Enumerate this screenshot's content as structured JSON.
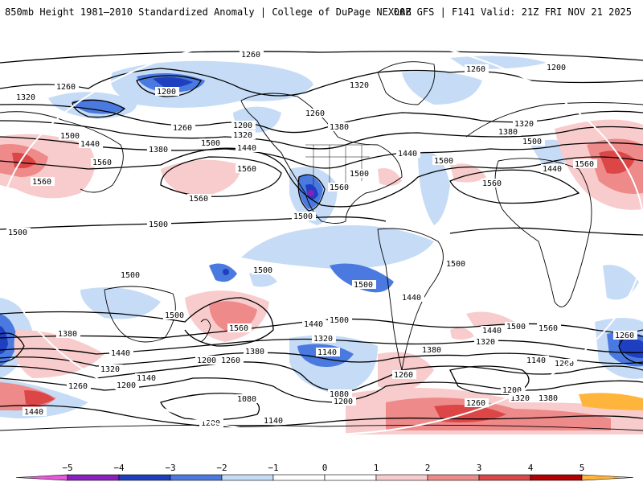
{
  "header": {
    "title_left": "850mb Height 1981–2010 Standardized Anomaly | College of DuPage NEXLAB",
    "title_right": "00Z GFS | F141 Valid: 21Z FRI NOV 21 2025"
  },
  "map": {
    "contour_labels": [
      "1260",
      "1200",
      "1320",
      "1500",
      "1440",
      "1380",
      "1560",
      "1080",
      "1140"
    ],
    "colors": {
      "neg5": "#e45ad8",
      "neg4": "#8a1fbf",
      "neg3": "#1e3fbf",
      "neg2": "#4a7ae0",
      "neg1": "#c6dcf6",
      "pos1": "#f8cccc",
      "pos2": "#ee8a8a",
      "pos3": "#dd4646",
      "pos4": "#b40000",
      "pos5": "#ffb43c",
      "land": "#ffffff",
      "contour": "#000000"
    }
  },
  "legend": {
    "ticks": [
      "−5",
      "−4",
      "−3",
      "−2",
      "−1",
      "0",
      "1",
      "2",
      "3",
      "4",
      "5"
    ],
    "bins": [
      "#e45ad8",
      "#8a1fbf",
      "#1e3fbf",
      "#4a7ae0",
      "#c6dcf6",
      "#ffffff",
      "#ffffff",
      "#f8cccc",
      "#ee8a8a",
      "#dd4646",
      "#b40000",
      "#ffb43c"
    ]
  }
}
